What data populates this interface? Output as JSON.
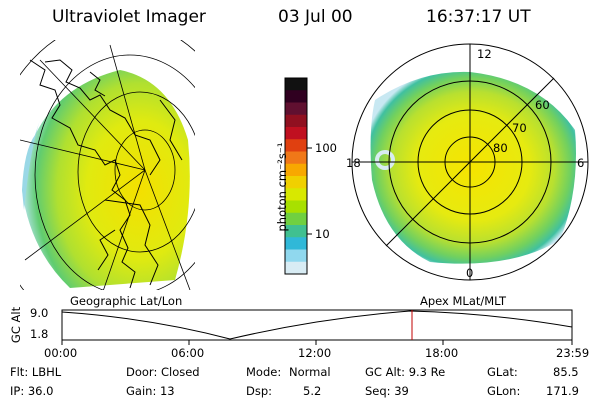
{
  "header": {
    "instrument": "Ultraviolet Imager",
    "date": "03 Jul 00",
    "time": "16:37:17 UT"
  },
  "colorbar": {
    "unit_label": "photon cm⁻²s⁻¹",
    "tick_labels": [
      "100",
      "10"
    ],
    "colors": [
      "#111111",
      "#300020",
      "#601030",
      "#901020",
      "#c01020",
      "#e04010",
      "#f07818",
      "#f8a800",
      "#f0d000",
      "#d8e800",
      "#a8e000",
      "#70d040",
      "#40c090",
      "#30b8d8",
      "#90d8ee",
      "#d8ecf4"
    ]
  },
  "polar_plot": {
    "labels": {
      "top": "12",
      "left": "18",
      "right": "6",
      "bottom": "0"
    },
    "ring_labels": [
      "60",
      "70",
      "80"
    ]
  },
  "panel_labels": {
    "geographic": "Geographic Lat/Lon",
    "apex": "Apex MLat/MLT"
  },
  "timeline": {
    "axis_label": "GC Alt",
    "y_ticks": [
      "9.0",
      "1.8"
    ],
    "x_ticks": [
      "00:00",
      "06:00",
      "12:00",
      "18:00",
      "23:59"
    ]
  },
  "info": {
    "col1": [
      "Flt: LBHL",
      "IP: 36.0"
    ],
    "col2": [
      "Door: Closed",
      "Gain: 13"
    ],
    "col3_labels": [
      "Mode:",
      "Dsp:"
    ],
    "col3_values": [
      "Normal",
      "5.2"
    ],
    "col4": [
      "GC Alt: 9.3 Re",
      "Seq: 39"
    ],
    "col5_labels": [
      "GLat:",
      "GLon:"
    ],
    "col5_values": [
      "85.5",
      "171.9"
    ]
  }
}
